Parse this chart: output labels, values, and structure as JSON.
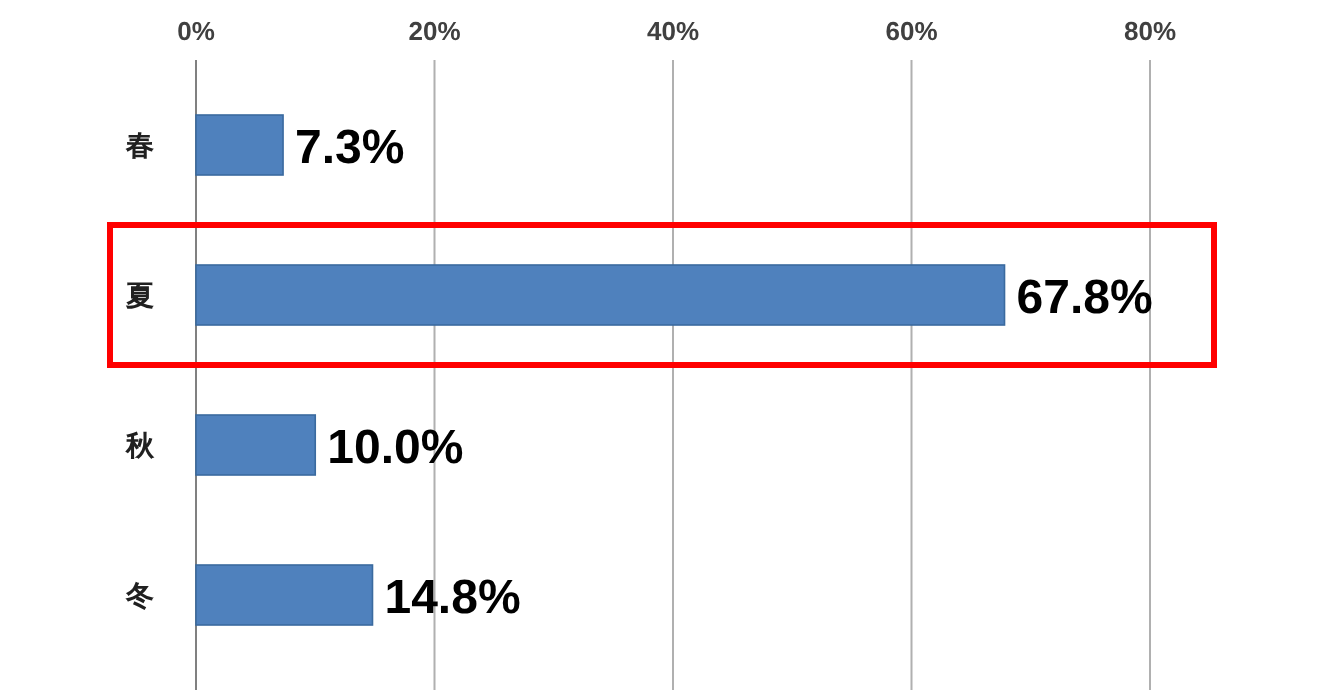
{
  "chart_data": {
    "type": "bar",
    "orientation": "horizontal",
    "categories": [
      "春",
      "夏",
      "秋",
      "冬"
    ],
    "series": [
      {
        "color": "#4f81bd",
        "values": [
          7.3,
          67.8,
          10.0,
          14.8
        ],
        "value_labels": [
          "7.3%",
          "67.8%",
          "10.0%",
          "14.8%"
        ]
      }
    ],
    "xlim": [
      0,
      80
    ],
    "xticks": [
      {
        "value": 0,
        "label": "0%"
      },
      {
        "value": 20,
        "label": "20%"
      },
      {
        "value": 40,
        "label": "40%"
      },
      {
        "value": 60,
        "label": "60%"
      },
      {
        "value": 80,
        "label": "80%"
      }
    ],
    "grid": "x"
  }
}
